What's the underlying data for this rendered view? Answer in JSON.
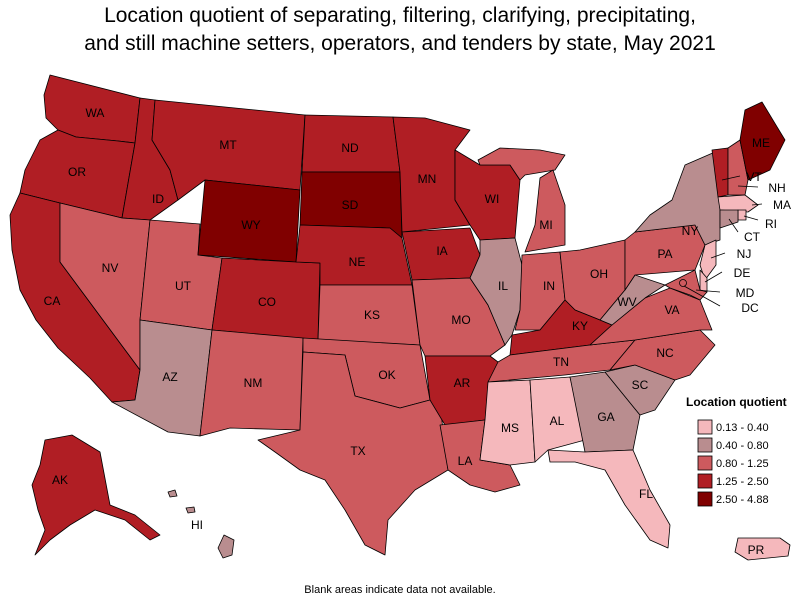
{
  "title": {
    "line1": "Location quotient of separating, filtering, clarifying, precipitating,",
    "line2": "and still machine setters, operators, and tenders by state, May 2021"
  },
  "legend": {
    "title": "Location quotient",
    "classes": [
      {
        "label": "0.13 - 0.40",
        "color": "#f5b8bc"
      },
      {
        "label": "0.40 - 0.80",
        "color": "#b98d8f"
      },
      {
        "label": "0.80 - 1.25",
        "color": "#cd5a5e"
      },
      {
        "label": "1.25 - 2.50",
        "color": "#b01e24"
      },
      {
        "label": "2.50 - 4.88",
        "color": "#800000"
      }
    ]
  },
  "states": [
    {
      "abbr": "WA",
      "class": 3
    },
    {
      "abbr": "OR",
      "class": 3
    },
    {
      "abbr": "CA",
      "class": 3
    },
    {
      "abbr": "ID",
      "class": 3
    },
    {
      "abbr": "NV",
      "class": 2
    },
    {
      "abbr": "UT",
      "class": 2
    },
    {
      "abbr": "AZ",
      "class": 1
    },
    {
      "abbr": "MT",
      "class": 3
    },
    {
      "abbr": "WY",
      "class": 4
    },
    {
      "abbr": "CO",
      "class": 3
    },
    {
      "abbr": "NM",
      "class": 2
    },
    {
      "abbr": "ND",
      "class": 3
    },
    {
      "abbr": "SD",
      "class": 4
    },
    {
      "abbr": "NE",
      "class": 3
    },
    {
      "abbr": "KS",
      "class": 2
    },
    {
      "abbr": "OK",
      "class": 2
    },
    {
      "abbr": "TX",
      "class": 2
    },
    {
      "abbr": "MN",
      "class": 3
    },
    {
      "abbr": "IA",
      "class": 3
    },
    {
      "abbr": "MO",
      "class": 2
    },
    {
      "abbr": "AR",
      "class": 3
    },
    {
      "abbr": "LA",
      "class": 2
    },
    {
      "abbr": "WI",
      "class": 3
    },
    {
      "abbr": "IL",
      "class": 1
    },
    {
      "abbr": "MI",
      "class": 2
    },
    {
      "abbr": "IN",
      "class": 2
    },
    {
      "abbr": "OH",
      "class": 2
    },
    {
      "abbr": "KY",
      "class": 3
    },
    {
      "abbr": "TN",
      "class": 2
    },
    {
      "abbr": "MS",
      "class": 0
    },
    {
      "abbr": "AL",
      "class": 0
    },
    {
      "abbr": "GA",
      "class": 1
    },
    {
      "abbr": "FL",
      "class": 0
    },
    {
      "abbr": "SC",
      "class": 1
    },
    {
      "abbr": "NC",
      "class": 2
    },
    {
      "abbr": "VA",
      "class": 2
    },
    {
      "abbr": "WV",
      "class": 1
    },
    {
      "abbr": "PA",
      "class": 2
    },
    {
      "abbr": "NY",
      "class": 1
    },
    {
      "abbr": "VT",
      "class": 3
    },
    {
      "abbr": "NH",
      "class": 2
    },
    {
      "abbr": "ME",
      "class": 4
    },
    {
      "abbr": "MA",
      "class": 0
    },
    {
      "abbr": "RI",
      "class": 0
    },
    {
      "abbr": "CT",
      "class": 1
    },
    {
      "abbr": "NJ",
      "class": 0
    },
    {
      "abbr": "DE",
      "class": 0
    },
    {
      "abbr": "MD",
      "class": 2
    },
    {
      "abbr": "DC",
      "class": 2
    },
    {
      "abbr": "AK",
      "class": 3
    },
    {
      "abbr": "HI",
      "class": 1
    },
    {
      "abbr": "PR",
      "class": 0
    }
  ],
  "footnote": "Blank areas indicate data not available."
}
